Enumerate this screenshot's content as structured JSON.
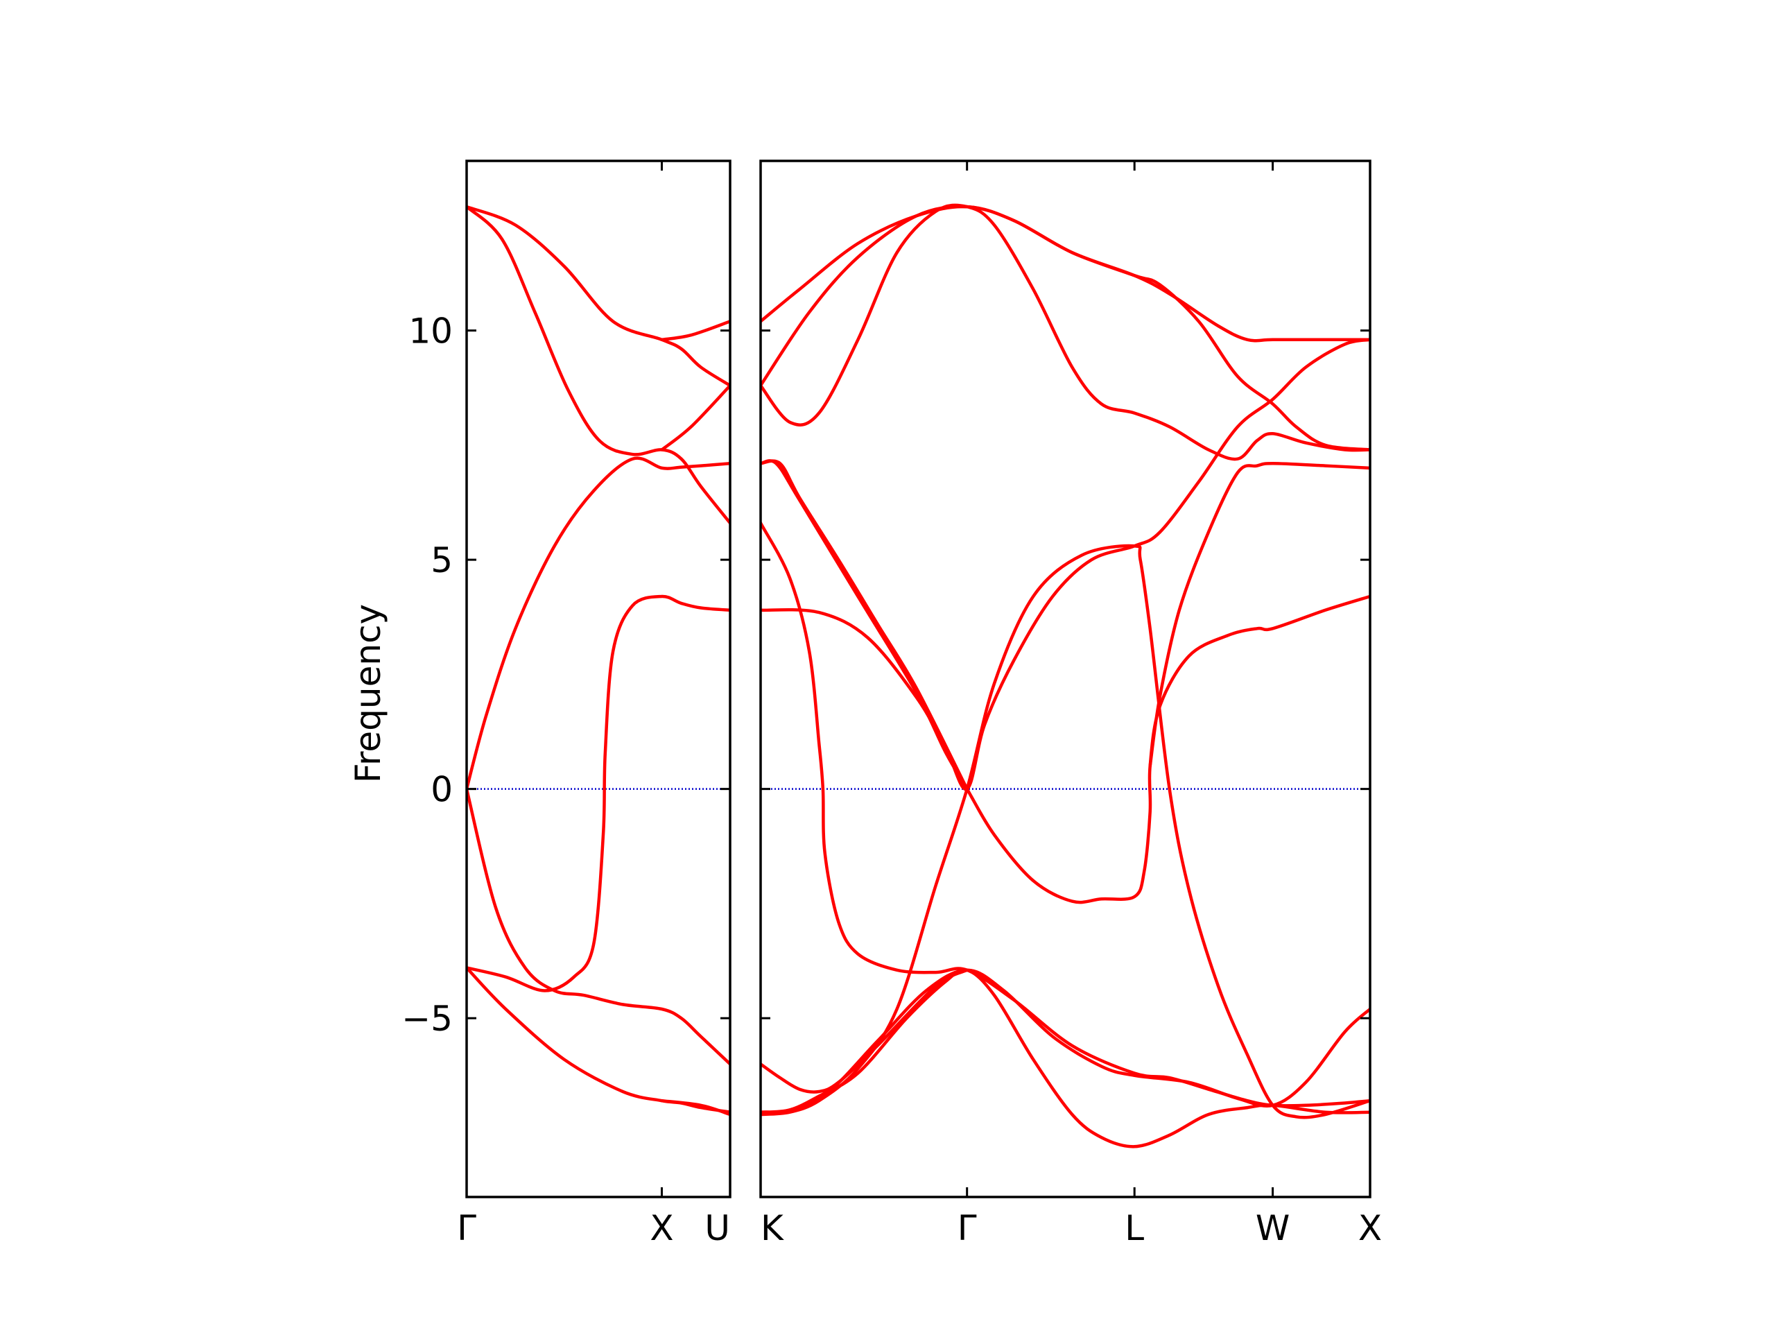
{
  "chart_data": {
    "type": "line",
    "title": "",
    "ylabel": "Frequency",
    "ylim": [
      -8.9,
      13.7
    ],
    "yticks": [
      {
        "value": 10,
        "label": "10"
      },
      {
        "value": 5,
        "label": "5"
      },
      {
        "value": 0,
        "label": "0"
      },
      {
        "value": -5,
        "label": "−5"
      }
    ],
    "grid": false,
    "legend": "none",
    "colors": {
      "bands": "#ff0000",
      "zero_line": "#0000cc",
      "axes": "#000000"
    },
    "panels": [
      {
        "xticks": [
          {
            "value": 0,
            "label": "Γ",
            "align": "middle"
          },
          {
            "value": 1,
            "label": "X",
            "align": "middle"
          },
          {
            "value": 1.35,
            "label": "U",
            "align": "end"
          }
        ],
        "xlim": [
          0,
          1.35
        ],
        "bands": [
          [
            [
              0,
              12.7
            ],
            [
              0.25,
              12.3
            ],
            [
              0.5,
              11.4
            ],
            [
              0.75,
              10.2
            ],
            [
              1,
              9.8
            ],
            [
              1.1,
              9.6
            ],
            [
              1.2,
              9.2
            ],
            [
              1.35,
              8.8
            ]
          ],
          [
            [
              0,
              12.7
            ],
            [
              0.18,
              12.0
            ],
            [
              0.35,
              10.4
            ],
            [
              0.52,
              8.7
            ],
            [
              0.68,
              7.6
            ],
            [
              0.85,
              7.3
            ],
            [
              1,
              7.4
            ],
            [
              1.1,
              7.2
            ],
            [
              1.2,
              6.6
            ],
            [
              1.35,
              5.8
            ]
          ],
          [
            [
              0,
              0
            ],
            [
              0.1,
              1.6
            ],
            [
              0.25,
              3.5
            ],
            [
              0.45,
              5.3
            ],
            [
              0.65,
              6.5
            ],
            [
              0.85,
              7.2
            ],
            [
              1,
              7.0
            ],
            [
              1.1,
              7.02
            ],
            [
              1.2,
              7.05
            ],
            [
              1.35,
              7.1
            ]
          ],
          [
            [
              0,
              0
            ],
            [
              0.15,
              -2.6
            ],
            [
              0.3,
              -3.9
            ],
            [
              0.45,
              -4.4
            ],
            [
              0.6,
              -4.5
            ],
            [
              0.8,
              -4.7
            ],
            [
              1,
              -4.8
            ],
            [
              1.1,
              -5.0
            ],
            [
              1.2,
              -5.4
            ],
            [
              1.35,
              -6.0
            ]
          ],
          [
            [
              0,
              -3.9
            ],
            [
              0.2,
              -4.1
            ],
            [
              0.4,
              -4.4
            ],
            [
              0.55,
              -4.1
            ],
            [
              0.65,
              -3.4
            ],
            [
              0.7,
              -1.0
            ],
            [
              0.71,
              0.8
            ],
            [
              0.75,
              3.0
            ],
            [
              0.85,
              4.0
            ],
            [
              1,
              4.2
            ],
            [
              1.1,
              4.05
            ],
            [
              1.2,
              3.95
            ],
            [
              1.35,
              3.9
            ]
          ],
          [
            [
              0,
              -3.9
            ],
            [
              0.2,
              -4.8
            ],
            [
              0.5,
              -5.9
            ],
            [
              0.8,
              -6.6
            ],
            [
              1,
              -6.8
            ],
            [
              1.1,
              -6.85
            ],
            [
              1.2,
              -6.95
            ],
            [
              1.35,
              -7.05
            ]
          ],
          [
            [
              1,
              9.8
            ],
            [
              1.15,
              9.9
            ],
            [
              1.35,
              10.2
            ]
          ],
          [
            [
              1,
              7.4
            ],
            [
              1.15,
              7.9
            ],
            [
              1.35,
              8.8
            ]
          ],
          [
            [
              1,
              -6.8
            ],
            [
              1.2,
              -6.9
            ],
            [
              1.35,
              -7.1
            ]
          ]
        ]
      },
      {
        "xticks": [
          {
            "value": 0,
            "label": "K",
            "align": "start"
          },
          {
            "value": 1.06,
            "label": "Γ",
            "align": "middle"
          },
          {
            "value": 1.92,
            "label": "L",
            "align": "middle"
          },
          {
            "value": 2.63,
            "label": "W",
            "align": "middle"
          },
          {
            "value": 3.13,
            "label": "X",
            "align": "middle"
          }
        ],
        "xlim": [
          0,
          3.13
        ],
        "bands": [
          [
            [
              0,
              10.2
            ],
            [
              0.2,
              10.9
            ],
            [
              0.5,
              11.9
            ],
            [
              0.8,
              12.5
            ],
            [
              1.06,
              12.7
            ],
            [
              1.3,
              12.4
            ],
            [
              1.6,
              11.7
            ],
            [
              1.92,
              11.2
            ],
            [
              2.1,
              10.8
            ],
            [
              2.35,
              10.1
            ],
            [
              2.5,
              9.8
            ],
            [
              2.63,
              9.8
            ],
            [
              2.9,
              9.8
            ],
            [
              3.13,
              9.8
            ]
          ],
          [
            [
              0,
              8.8
            ],
            [
              0.25,
              10.4
            ],
            [
              0.5,
              11.6
            ],
            [
              0.8,
              12.5
            ],
            [
              1.06,
              12.7
            ],
            [
              1.3,
              12.4
            ],
            [
              1.6,
              11.7
            ],
            [
              1.92,
              11.2
            ],
            [
              2.05,
              11.0
            ],
            [
              2.25,
              10.2
            ],
            [
              2.45,
              9.0
            ],
            [
              2.63,
              8.4
            ],
            [
              2.75,
              7.9
            ],
            [
              2.9,
              7.5
            ],
            [
              3.13,
              7.4
            ]
          ],
          [
            [
              0,
              8.8
            ],
            [
              0.15,
              8.0
            ],
            [
              0.3,
              8.2
            ],
            [
              0.5,
              9.8
            ],
            [
              0.7,
              11.7
            ],
            [
              0.9,
              12.6
            ],
            [
              1.06,
              12.7
            ],
            [
              1.2,
              12.3
            ],
            [
              1.4,
              10.9
            ],
            [
              1.6,
              9.2
            ],
            [
              1.75,
              8.4
            ],
            [
              1.92,
              8.2
            ],
            [
              2.1,
              7.9
            ],
            [
              2.3,
              7.4
            ],
            [
              2.45,
              7.2
            ],
            [
              2.55,
              7.6
            ],
            [
              2.63,
              7.75
            ],
            [
              2.8,
              7.55
            ],
            [
              3.0,
              7.4
            ],
            [
              3.13,
              7.4
            ]
          ],
          [
            [
              0,
              7.1
            ],
            [
              0.08,
              7.1
            ],
            [
              0.2,
              6.3
            ],
            [
              0.5,
              4.2
            ],
            [
              0.8,
              2.1
            ],
            [
              0.95,
              0.8
            ],
            [
              1.06,
              0
            ],
            [
              1.2,
              -1.0
            ],
            [
              1.4,
              -2.0
            ],
            [
              1.6,
              -2.45
            ],
            [
              1.75,
              -2.4
            ],
            [
              1.92,
              -2.35
            ],
            [
              1.97,
              -1.8
            ],
            [
              2.0,
              -0.5
            ],
            [
              2.0,
              0.5
            ],
            [
              2.05,
              1.8
            ],
            [
              2.2,
              2.9
            ],
            [
              2.4,
              3.35
            ],
            [
              2.55,
              3.5
            ],
            [
              2.63,
              3.5
            ],
            [
              2.9,
              3.9
            ],
            [
              3.13,
              4.2
            ]
          ],
          [
            [
              0,
              5.8
            ],
            [
              0.15,
              4.6
            ],
            [
              0.25,
              3.0
            ],
            [
              0.3,
              1.0
            ],
            [
              0.32,
              0
            ],
            [
              0.33,
              -1.4
            ],
            [
              0.4,
              -2.9
            ],
            [
              0.5,
              -3.6
            ],
            [
              0.7,
              -3.95
            ],
            [
              0.9,
              -4.0
            ],
            [
              1.06,
              -3.95
            ],
            [
              1.3,
              -4.6
            ],
            [
              1.6,
              -5.6
            ],
            [
              1.92,
              -6.2
            ],
            [
              2.1,
              -6.3
            ],
            [
              2.3,
              -6.55
            ],
            [
              2.5,
              -6.8
            ],
            [
              2.63,
              -6.9
            ],
            [
              2.8,
              -6.9
            ],
            [
              3.0,
              -6.85
            ],
            [
              3.13,
              -6.8
            ]
          ],
          [
            [
              0,
              3.9
            ],
            [
              0.3,
              3.85
            ],
            [
              0.55,
              3.3
            ],
            [
              0.8,
              2.0
            ],
            [
              0.95,
              0.9
            ],
            [
              1.06,
              0
            ],
            [
              1.15,
              1.4
            ],
            [
              1.3,
              2.8
            ],
            [
              1.5,
              4.2
            ],
            [
              1.7,
              5.0
            ],
            [
              1.92,
              5.3
            ],
            [
              2.05,
              5.6
            ],
            [
              2.25,
              6.7
            ],
            [
              2.45,
              7.9
            ],
            [
              2.63,
              8.5
            ],
            [
              2.8,
              9.2
            ],
            [
              3.0,
              9.7
            ],
            [
              3.13,
              9.8
            ]
          ],
          [
            [
              0,
              -7.1
            ],
            [
              0.15,
              -7.05
            ],
            [
              0.3,
              -6.8
            ],
            [
              0.5,
              -6.1
            ],
            [
              0.7,
              -4.8
            ],
            [
              0.9,
              -2.1
            ],
            [
              1.06,
              0
            ],
            [
              1.2,
              2.3
            ],
            [
              1.4,
              4.2
            ],
            [
              1.65,
              5.1
            ],
            [
              1.92,
              5.3
            ],
            [
              1.95,
              5.0
            ],
            [
              2.0,
              3.5
            ],
            [
              2.1,
              0
            ],
            [
              2.2,
              -2.2
            ],
            [
              2.35,
              -4.3
            ],
            [
              2.5,
              -5.8
            ],
            [
              2.63,
              -6.9
            ],
            [
              2.75,
              -7.15
            ],
            [
              2.9,
              -7.1
            ],
            [
              3.13,
              -6.8
            ]
          ],
          [
            [
              0,
              -7.05
            ],
            [
              0.15,
              -7.0
            ],
            [
              0.35,
              -6.6
            ],
            [
              0.6,
              -5.5
            ],
            [
              0.85,
              -4.4
            ],
            [
              1.06,
              -3.95
            ],
            [
              1.25,
              -4.4
            ],
            [
              1.5,
              -5.4
            ],
            [
              1.75,
              -6.05
            ],
            [
              1.92,
              -6.25
            ],
            [
              2.2,
              -6.4
            ],
            [
              2.45,
              -6.75
            ],
            [
              2.63,
              -6.9
            ],
            [
              2.8,
              -6.4
            ],
            [
              3.0,
              -5.3
            ],
            [
              3.13,
              -4.8
            ]
          ],
          [
            [
              0,
              -7.05
            ],
            [
              0.15,
              -7.0
            ],
            [
              0.3,
              -6.7
            ],
            [
              0.5,
              -6.2
            ],
            [
              0.75,
              -5.0
            ],
            [
              0.95,
              -4.2
            ],
            [
              1.06,
              -3.95
            ],
            [
              1.2,
              -4.5
            ],
            [
              1.4,
              -5.9
            ],
            [
              1.6,
              -7.1
            ],
            [
              1.75,
              -7.6
            ],
            [
              1.92,
              -7.8
            ],
            [
              2.1,
              -7.55
            ],
            [
              2.3,
              -7.1
            ],
            [
              2.5,
              -6.95
            ],
            [
              2.63,
              -6.9
            ],
            [
              2.9,
              -7.05
            ],
            [
              3.13,
              -7.05
            ]
          ],
          [
            [
              0,
              7.1
            ],
            [
              0.1,
              7.1
            ],
            [
              0.2,
              6.35
            ],
            [
              0.4,
              5.0
            ],
            [
              0.6,
              3.6
            ],
            [
              0.8,
              2.2
            ],
            [
              1.06,
              0
            ]
          ],
          [
            [
              0,
              -6.0
            ],
            [
              0.1,
              -6.3
            ],
            [
              0.2,
              -6.55
            ],
            [
              0.3,
              -6.6
            ],
            [
              0.4,
              -6.4
            ],
            [
              0.6,
              -5.6
            ],
            [
              0.9,
              -4.3
            ],
            [
              1.06,
              -3.95
            ]
          ],
          [
            [
              2.0,
              0.5
            ],
            [
              2.05,
              2.0
            ],
            [
              2.15,
              3.9
            ],
            [
              2.3,
              5.6
            ],
            [
              2.45,
              6.9
            ],
            [
              2.55,
              7.05
            ],
            [
              2.63,
              7.1
            ],
            [
              2.9,
              7.05
            ],
            [
              3.13,
              7.0
            ]
          ]
        ]
      }
    ]
  }
}
